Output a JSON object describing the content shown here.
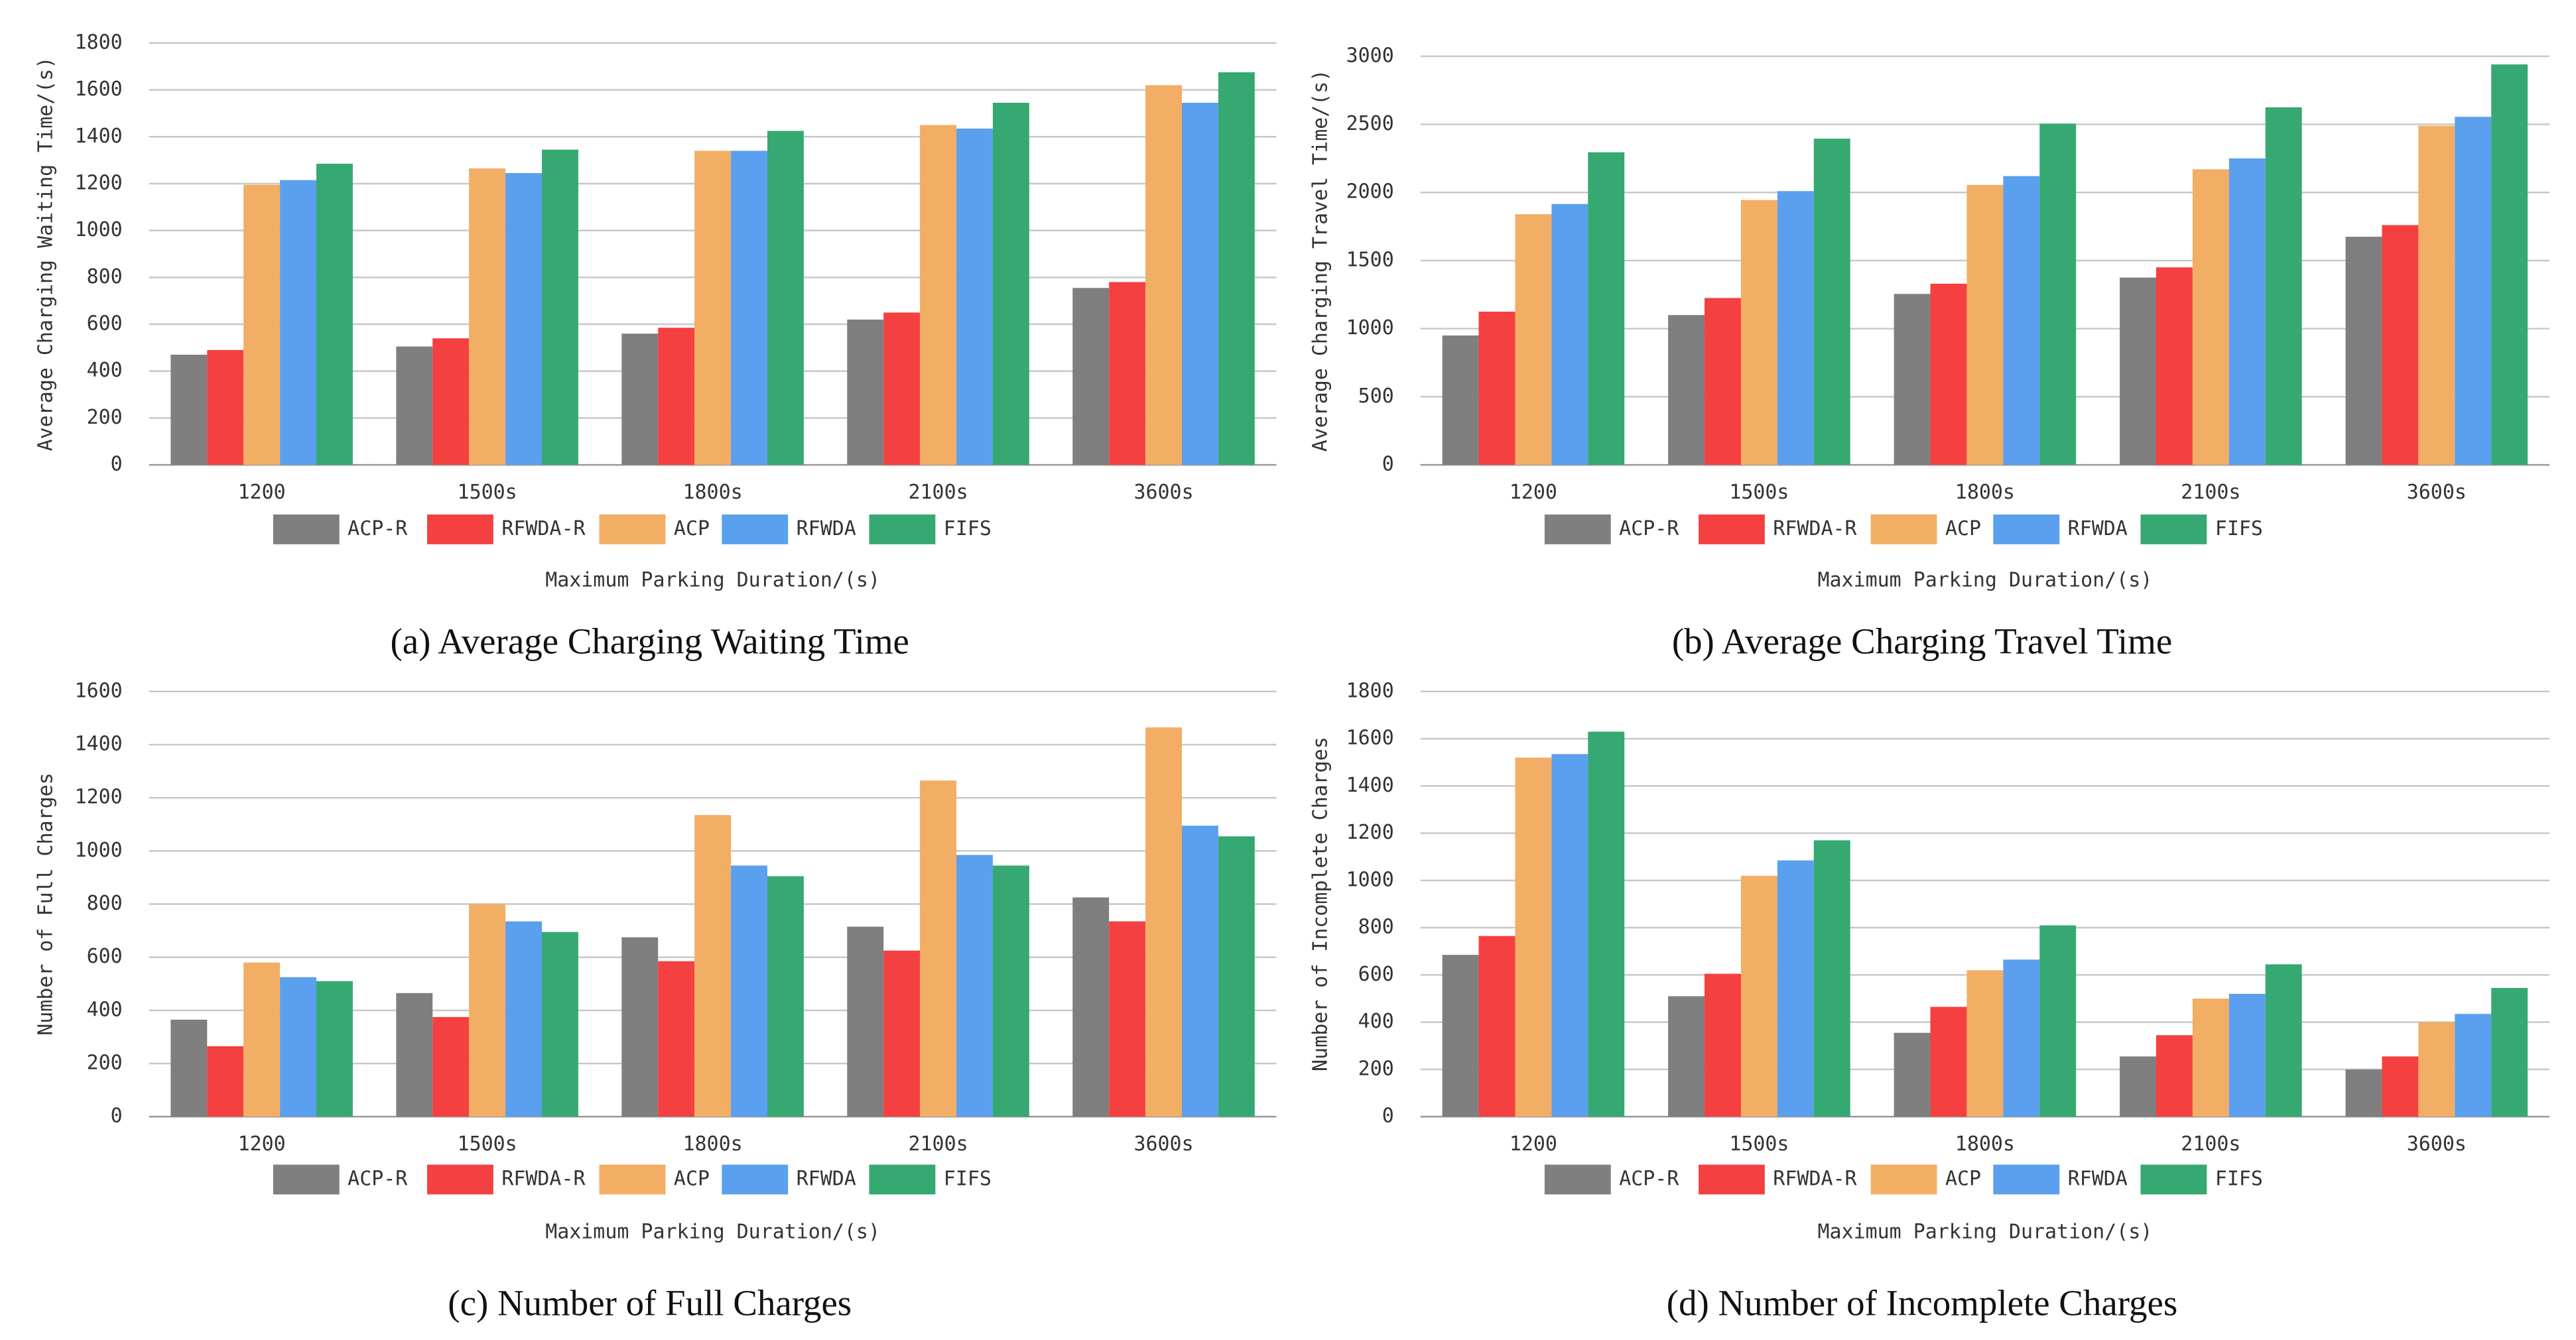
{
  "chart_data": [
    {
      "type": "bar",
      "title": "(a) Average Charging Waiting Time",
      "y_label": "Average Charging Waiting Time/(s)",
      "x_label": "Maximum Parking Duration/(s)",
      "categories": [
        "1200",
        "1500s",
        "1800s",
        "2100s",
        "3600s"
      ],
      "ylim": [
        0,
        1800
      ],
      "yticks": [
        0,
        200,
        400,
        600,
        800,
        1000,
        1200,
        1400,
        1600,
        1800
      ],
      "grid": true,
      "series": [
        {
          "name": "ACP-R",
          "color": "#7f7f7f",
          "values": [
            470,
            505,
            560,
            620,
            755
          ]
        },
        {
          "name": "RFWDA-R",
          "color": "#f44040",
          "values": [
            490,
            540,
            585,
            650,
            780
          ]
        },
        {
          "name": "ACP",
          "color": "#f2ae64",
          "values": [
            1195,
            1265,
            1340,
            1450,
            1620
          ]
        },
        {
          "name": "RFWDA",
          "color": "#5aa0ee",
          "values": [
            1215,
            1245,
            1340,
            1435,
            1545
          ]
        },
        {
          "name": "FIFS",
          "color": "#35a971",
          "values": [
            1285,
            1345,
            1425,
            1545,
            1675
          ]
        }
      ]
    },
    {
      "type": "bar",
      "title": "(b) Average Charging Travel Time",
      "y_label": "Average Charging Travel Time/(s)",
      "x_label": "Maximum Parking Duration/(s)",
      "categories": [
        "1200",
        "1500s",
        "1800s",
        "2100s",
        "3600s"
      ],
      "ylim": [
        0,
        3000
      ],
      "yticks": [
        0,
        500,
        1000,
        1500,
        2000,
        2500,
        3000
      ],
      "grid": true,
      "series": [
        {
          "name": "ACP-R",
          "color": "#7f7f7f",
          "values": [
            950,
            1100,
            1255,
            1375,
            1675
          ]
        },
        {
          "name": "RFWDA-R",
          "color": "#f44040",
          "values": [
            1125,
            1225,
            1330,
            1450,
            1760
          ]
        },
        {
          "name": "ACP",
          "color": "#f2ae64",
          "values": [
            1840,
            1945,
            2055,
            2170,
            2490
          ]
        },
        {
          "name": "RFWDA",
          "color": "#5aa0ee",
          "values": [
            1915,
            2010,
            2120,
            2250,
            2555
          ]
        },
        {
          "name": "FIFS",
          "color": "#35a971",
          "values": [
            2295,
            2395,
            2505,
            2625,
            2940
          ]
        }
      ]
    },
    {
      "type": "bar",
      "title": "(c) Number of Full Charges",
      "y_label": "Number of Full Charges",
      "x_label": "Maximum Parking Duration/(s)",
      "categories": [
        "1200",
        "1500s",
        "1800s",
        "2100s",
        "3600s"
      ],
      "ylim": [
        0,
        1600
      ],
      "yticks": [
        0,
        200,
        400,
        600,
        800,
        1000,
        1200,
        1400,
        1600
      ],
      "grid": true,
      "series": [
        {
          "name": "ACP-R",
          "color": "#7f7f7f",
          "values": [
            365,
            465,
            675,
            715,
            825
          ]
        },
        {
          "name": "RFWDA-R",
          "color": "#f44040",
          "values": [
            265,
            375,
            585,
            625,
            735
          ]
        },
        {
          "name": "ACP",
          "color": "#f2ae64",
          "values": [
            580,
            800,
            1135,
            1265,
            1465
          ]
        },
        {
          "name": "RFWDA",
          "color": "#5aa0ee",
          "values": [
            525,
            735,
            945,
            985,
            1095
          ]
        },
        {
          "name": "FIFS",
          "color": "#35a971",
          "values": [
            510,
            695,
            905,
            945,
            1055
          ]
        }
      ]
    },
    {
      "type": "bar",
      "title": "(d) Number of Incomplete Charges",
      "y_label": "Number of Incomplete Charges",
      "x_label": "Maximum Parking Duration/(s)",
      "categories": [
        "1200",
        "1500s",
        "1800s",
        "2100s",
        "3600s"
      ],
      "ylim": [
        0,
        1800
      ],
      "yticks": [
        0,
        200,
        400,
        600,
        800,
        1000,
        1200,
        1400,
        1600,
        1800
      ],
      "grid": true,
      "series": [
        {
          "name": "ACP-R",
          "color": "#7f7f7f",
          "values": [
            685,
            510,
            355,
            255,
            200
          ]
        },
        {
          "name": "RFWDA-R",
          "color": "#f44040",
          "values": [
            765,
            605,
            465,
            345,
            255
          ]
        },
        {
          "name": "ACP",
          "color": "#f2ae64",
          "values": [
            1520,
            1020,
            620,
            500,
            400
          ]
        },
        {
          "name": "RFWDA",
          "color": "#5aa0ee",
          "values": [
            1535,
            1085,
            665,
            520,
            435
          ]
        },
        {
          "name": "FIFS",
          "color": "#35a971",
          "values": [
            1630,
            1170,
            810,
            645,
            545
          ]
        }
      ]
    }
  ]
}
